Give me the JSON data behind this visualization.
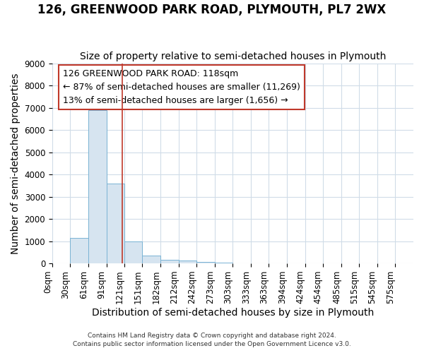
{
  "title": "126, GREENWOOD PARK ROAD, PLYMOUTH, PL7 2WX",
  "subtitle": "Size of property relative to semi-detached houses in Plymouth",
  "xlabel": "Distribution of semi-detached houses by size in Plymouth",
  "ylabel": "Number of semi-detached properties",
  "annotation_line1": "126 GREENWOOD PARK ROAD: 118sqm",
  "annotation_line2": "← 87% of semi-detached houses are smaller (11,269)",
  "annotation_line3": "13% of semi-detached houses are larger (1,656) →",
  "property_size": 118,
  "bar_edges": [
    0,
    30,
    61,
    91,
    121,
    151,
    182,
    212,
    242,
    273,
    303,
    333,
    363,
    394,
    424,
    454,
    485,
    515,
    545,
    575,
    606
  ],
  "bar_heights": [
    0,
    1130,
    6880,
    3580,
    980,
    340,
    160,
    115,
    75,
    50,
    0,
    0,
    0,
    0,
    0,
    0,
    0,
    0,
    0,
    0
  ],
  "bar_color": "#d6e4f0",
  "bar_edgecolor": "#7ab3d4",
  "vline_color": "#c0392b",
  "annotation_box_edgecolor": "#c0392b",
  "annotation_box_facecolor": "white",
  "ylim": [
    0,
    9000
  ],
  "xlim": [
    0,
    606
  ],
  "title_fontsize": 12,
  "subtitle_fontsize": 10,
  "axis_label_fontsize": 10,
  "tick_fontsize": 8.5,
  "annotation_fontsize": 9,
  "footer_line1": "Contains HM Land Registry data © Crown copyright and database right 2024.",
  "footer_line2": "Contains public sector information licensed under the Open Government Licence v3.0.",
  "background_color": "#ffffff",
  "plot_background_color": "#ffffff",
  "grid_color": "#d0dce8"
}
